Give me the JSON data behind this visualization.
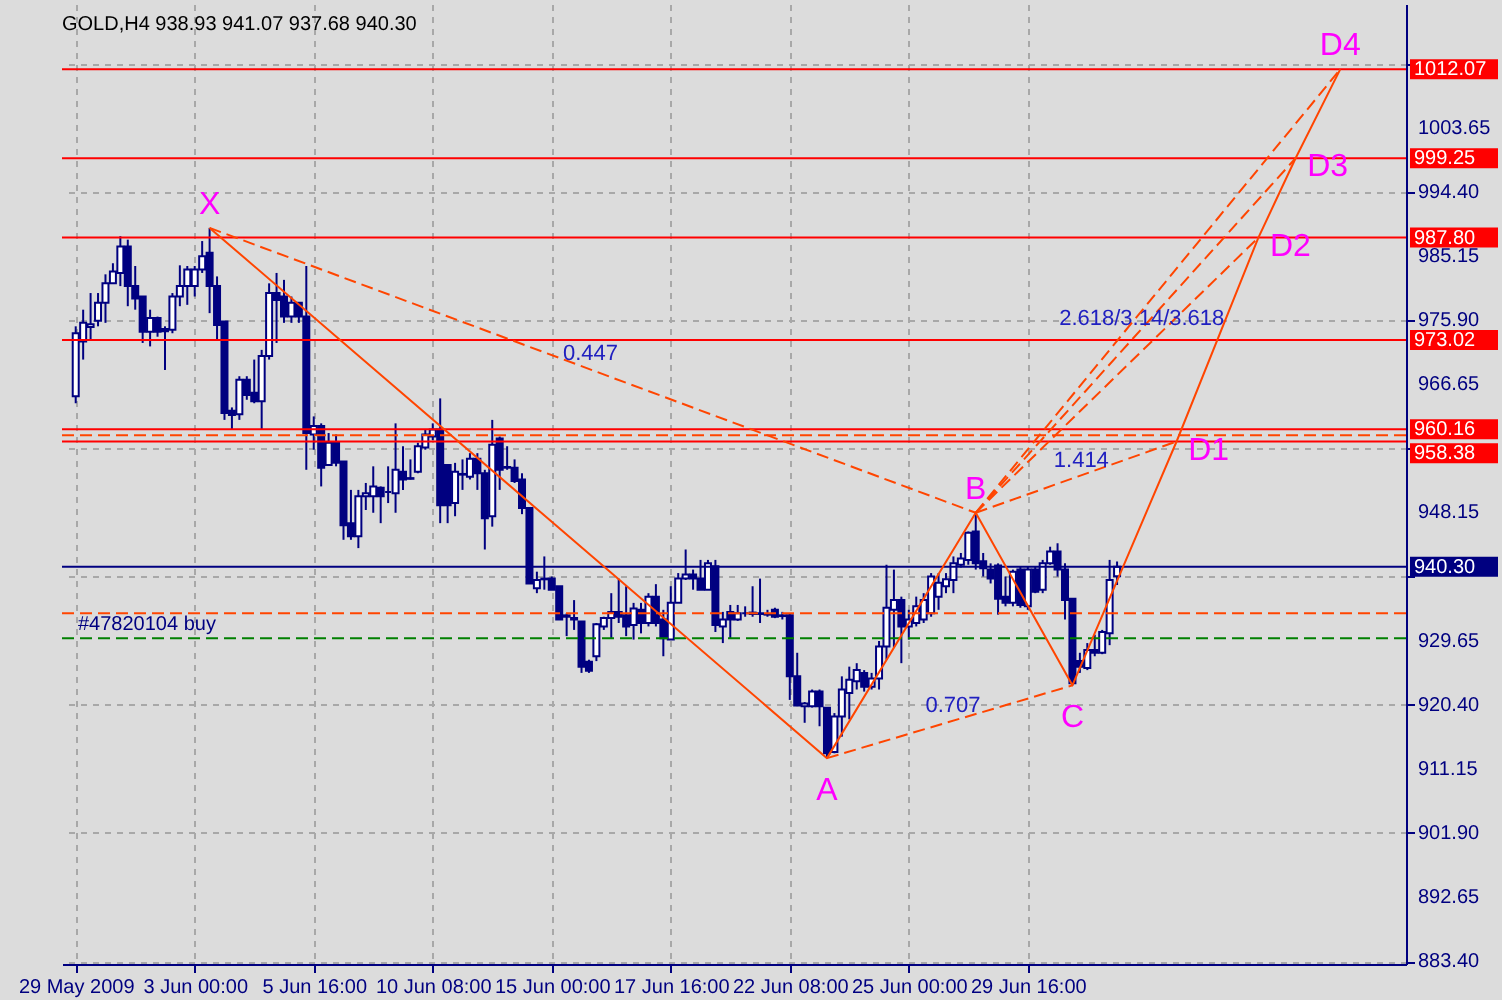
{
  "chart_data": {
    "type": "candlestick",
    "title": "GOLD,H4  938.93 941.07 937.68 940.30",
    "color": "#000080",
    "categories": [
      "29 May 2009",
      null,
      null,
      null,
      null,
      null,
      null,
      null,
      null,
      null,
      null,
      null,
      null,
      null,
      null,
      null,
      "3 Jun 00:00",
      null,
      null,
      null,
      null,
      null,
      null,
      null,
      null,
      null,
      null,
      null,
      null,
      null,
      null,
      null,
      "5 Jun 16:00",
      null,
      null,
      null,
      null,
      null,
      null,
      null,
      null,
      null,
      null,
      null,
      null,
      null,
      null,
      null,
      "10 Jun 08:00",
      null,
      null,
      null,
      null,
      null,
      null,
      null,
      null,
      null,
      null,
      null,
      null,
      null,
      null,
      null,
      "15 Jun 00:00",
      null,
      null,
      null,
      null,
      null,
      null,
      null,
      null,
      null,
      null,
      null,
      null,
      null,
      null,
      null,
      "17 Jun 16:00",
      null,
      null,
      null,
      null,
      null,
      null,
      null,
      null,
      null,
      null,
      null,
      null,
      null,
      null,
      null,
      "22 Jun 08:00",
      null,
      null,
      null,
      null,
      null,
      null,
      null,
      null,
      null,
      null,
      null,
      null,
      null,
      null,
      null,
      "25 Jun 00:00",
      null,
      null,
      null,
      null,
      null,
      null,
      null,
      null,
      null,
      null,
      null,
      null,
      null,
      null,
      null,
      "29 Jun 16:00",
      null,
      null,
      null,
      null,
      null,
      null,
      null,
      null,
      null,
      null,
      null,
      null,
      null,
      null,
      null,
      null,
      null,
      null,
      null,
      null,
      null,
      null,
      null,
      null,
      null,
      null,
      null,
      null,
      null,
      null,
      null,
      null,
      null,
      null,
      null,
      null,
      null,
      null,
      null,
      null,
      null,
      null,
      null,
      null,
      null,
      null,
      null,
      null,
      null
    ],
    "ohlc": [
      [
        964.9,
        975.0,
        963.9,
        974.0
      ],
      [
        972.8,
        977.4,
        970.2,
        975.5
      ],
      [
        974.9,
        979.8,
        973.1,
        975.3
      ],
      [
        975.8,
        979.8,
        975.0,
        978.4
      ],
      [
        978.4,
        982.5,
        975.5,
        981.2
      ],
      [
        981.2,
        984.1,
        981.2,
        982.9
      ],
      [
        982.7,
        988.0,
        980.8,
        986.5
      ],
      [
        986.5,
        987.5,
        977.9,
        980.8
      ],
      [
        980.8,
        983.7,
        977.4,
        979.0
      ],
      [
        979.3,
        979.3,
        972.6,
        974.2
      ],
      [
        974.2,
        977.4,
        972.1,
        976.2
      ],
      [
        976.2,
        976.4,
        973.5,
        974.2
      ],
      [
        974.6,
        975.0,
        968.7,
        974.3
      ],
      [
        974.5,
        979.8,
        974.0,
        979.3
      ],
      [
        979.3,
        983.8,
        977.9,
        980.8
      ],
      [
        980.8,
        983.7,
        978.1,
        983.2
      ],
      [
        980.8,
        983.7,
        979.3,
        983.2
      ],
      [
        983.2,
        987.3,
        982.7,
        985.1
      ],
      [
        985.6,
        989.2,
        976.9,
        980.8
      ],
      [
        980.8,
        982.2,
        972.9,
        975.2
      ],
      [
        975.7,
        975.7,
        961.5,
        962.5
      ],
      [
        962.8,
        963.3,
        960.1,
        962.2
      ],
      [
        962.3,
        967.8,
        961.5,
        967.3
      ],
      [
        967.3,
        967.8,
        964.4,
        965.1
      ],
      [
        965.4,
        970.2,
        963.9,
        964.2
      ],
      [
        964.2,
        971.6,
        960.1,
        970.7
      ],
      [
        970.7,
        981.2,
        970.2,
        979.8
      ],
      [
        979.8,
        982.7,
        972.6,
        978.8
      ],
      [
        979.3,
        981.7,
        975.5,
        976.4
      ],
      [
        976.4,
        979.3,
        975.5,
        978.4
      ],
      [
        978.4,
        978.4,
        975.5,
        976.4
      ],
      [
        976.4,
        983.7,
        954.3,
        959.6
      ],
      [
        959.4,
        962.0,
        957.2,
        960.6
      ],
      [
        960.6,
        961.0,
        951.9,
        954.6
      ],
      [
        955.0,
        959.6,
        955.0,
        958.2
      ],
      [
        958.2,
        959.4,
        954.8,
        955.3
      ],
      [
        955.5,
        955.5,
        944.2,
        946.3
      ],
      [
        946.6,
        951.4,
        944.2,
        944.7
      ],
      [
        944.7,
        951.4,
        943.0,
        950.5
      ],
      [
        950.5,
        952.4,
        948.5,
        950.9
      ],
      [
        950.5,
        954.8,
        948.1,
        951.9
      ],
      [
        951.7,
        951.9,
        946.6,
        950.5
      ],
      [
        951.1,
        954.8,
        949.5,
        951.1
      ],
      [
        950.9,
        961.0,
        948.1,
        954.3
      ],
      [
        954.0,
        957.7,
        951.4,
        952.9
      ],
      [
        953.0,
        955.8,
        952.9,
        953.1
      ],
      [
        954.0,
        958.2,
        953.8,
        957.7
      ],
      [
        957.5,
        960.1,
        957.2,
        959.4
      ],
      [
        959.1,
        961.0,
        958.6,
        960.1
      ],
      [
        960.1,
        964.6,
        946.6,
        949.2
      ],
      [
        955.0,
        955.0,
        946.6,
        949.2
      ],
      [
        949.5,
        955.3,
        947.6,
        954.0
      ],
      [
        953.7,
        955.8,
        951.4,
        953.6
      ],
      [
        953.3,
        956.7,
        952.9,
        955.9
      ],
      [
        955.9,
        956.7,
        951.4,
        953.8
      ],
      [
        953.8,
        954.3,
        942.8,
        947.3
      ],
      [
        947.6,
        961.5,
        946.1,
        957.9
      ],
      [
        958.8,
        959.1,
        951.4,
        954.3
      ],
      [
        954.7,
        957.7,
        954.3,
        954.6
      ],
      [
        954.6,
        955.8,
        952.4,
        952.7
      ],
      [
        952.9,
        953.8,
        947.9,
        948.8
      ],
      [
        948.8,
        948.8,
        937.9,
        937.9
      ],
      [
        937.2,
        939.6,
        936.5,
        938.4
      ],
      [
        938.6,
        941.8,
        937.0,
        938.5
      ],
      [
        938.6,
        938.9,
        937.0,
        937.0
      ],
      [
        937.5,
        937.5,
        932.7,
        932.7
      ],
      [
        933.3,
        933.6,
        930.3,
        933.1
      ],
      [
        932.7,
        935.5,
        931.2,
        932.9
      ],
      [
        932.4,
        932.4,
        925.0,
        925.9
      ],
      [
        926.6,
        926.9,
        925.0,
        925.3
      ],
      [
        927.4,
        932.2,
        926.7,
        932.0
      ],
      [
        931.7,
        933.1,
        931.2,
        932.9
      ],
      [
        932.9,
        936.5,
        930.0,
        933.8
      ],
      [
        933.8,
        938.6,
        932.2,
        933.1
      ],
      [
        933.3,
        937.5,
        930.3,
        931.7
      ],
      [
        931.9,
        935.1,
        929.8,
        934.3
      ],
      [
        934.1,
        935.1,
        930.7,
        932.2
      ],
      [
        932.2,
        936.5,
        931.7,
        936.0
      ],
      [
        936.0,
        937.8,
        931.7,
        932.2
      ],
      [
        932.7,
        934.1,
        927.4,
        930.0
      ],
      [
        929.8,
        937.5,
        929.8,
        935.1
      ],
      [
        935.1,
        939.4,
        935.1,
        938.6
      ],
      [
        938.6,
        942.8,
        938.4,
        939.2
      ],
      [
        939.2,
        939.9,
        937.0,
        938.6
      ],
      [
        938.6,
        941.3,
        937.0,
        937.0
      ],
      [
        937.0,
        941.3,
        937.0,
        940.8
      ],
      [
        940.4,
        941.3,
        930.9,
        931.9
      ],
      [
        931.7,
        933.8,
        929.3,
        932.7
      ],
      [
        933.8,
        934.8,
        930.0,
        932.7
      ],
      [
        932.7,
        934.8,
        932.5,
        933.6
      ],
      [
        933.6,
        934.6,
        933.1,
        933.6
      ],
      [
        933.7,
        937.5,
        933.1,
        933.5
      ],
      [
        933.6,
        938.6,
        932.2,
        933.5
      ],
      [
        933.5,
        934.1,
        933.1,
        933.4
      ],
      [
        934.1,
        934.4,
        932.9,
        933.1
      ],
      [
        933.3,
        933.8,
        932.7,
        933.2
      ],
      [
        933.3,
        933.6,
        921.1,
        924.5
      ],
      [
        924.5,
        927.9,
        920.2,
        920.3
      ],
      [
        920.2,
        920.8,
        917.8,
        920.6
      ],
      [
        920.2,
        922.6,
        920.0,
        922.3
      ],
      [
        922.3,
        922.6,
        917.3,
        920.2
      ],
      [
        919.96,
        920.0,
        912.7,
        913.4
      ],
      [
        913.6,
        919.2,
        913.4,
        918.7
      ],
      [
        918.7,
        924.5,
        915.8,
        922.6
      ],
      [
        922.1,
        925.9,
        918.3,
        924.0
      ],
      [
        923.8,
        926.4,
        922.6,
        925.4
      ],
      [
        925.0,
        925.4,
        922.3,
        923.0
      ],
      [
        923.0,
        925.0,
        922.6,
        924.2
      ],
      [
        924.2,
        929.6,
        922.6,
        928.8
      ],
      [
        928.8,
        940.6,
        926.9,
        934.4
      ],
      [
        934.1,
        939.9,
        928.6,
        935.5
      ],
      [
        935.5,
        936.0,
        926.4,
        931.7
      ],
      [
        931.7,
        934.1,
        929.8,
        932.7
      ],
      [
        932.2,
        936.0,
        931.7,
        934.6
      ],
      [
        932.7,
        936.5,
        932.2,
        935.5
      ],
      [
        933.6,
        939.4,
        933.1,
        938.9
      ],
      [
        936.0,
        939.4,
        934.1,
        938.0
      ],
      [
        937.5,
        939.4,
        936.5,
        938.5
      ],
      [
        938.4,
        941.8,
        936.5,
        940.8
      ],
      [
        940.6,
        942.3,
        940.2,
        941.5
      ],
      [
        941.3,
        945.4,
        940.6,
        945.2
      ],
      [
        945.4,
        948.1,
        939.9,
        940.8
      ],
      [
        941.1,
        942.3,
        938.9,
        940.1
      ],
      [
        939.9,
        940.8,
        937.9,
        938.6
      ],
      [
        940.5,
        940.8,
        933.4,
        935.7
      ],
      [
        936.0,
        938.9,
        934.6,
        935.1
      ],
      [
        935.1,
        939.9,
        934.6,
        939.6
      ],
      [
        939.9,
        940.4,
        934.4,
        934.8
      ],
      [
        934.6,
        940.4,
        934.1,
        939.9
      ],
      [
        939.9,
        940.4,
        936.5,
        936.7
      ],
      [
        937.0,
        941.3,
        936.5,
        940.8
      ],
      [
        940.8,
        943.2,
        940.6,
        942.5
      ],
      [
        942.5,
        943.7,
        938.9,
        939.9
      ],
      [
        939.9,
        940.8,
        932.7,
        935.5
      ],
      [
        935.7,
        935.7,
        923.2,
        923.5
      ],
      [
        926.7,
        927.9,
        925.0,
        925.9
      ],
      [
        925.7,
        929.3,
        925.4,
        928.3
      ],
      [
        928.3,
        930.5,
        927.4,
        927.9
      ],
      [
        927.9,
        931.2,
        927.7,
        930.9
      ],
      [
        930.7,
        941.3,
        929.0,
        938.4
      ],
      [
        938.93,
        941.07,
        937.68,
        940.3
      ],
      null,
      null,
      null,
      null,
      null,
      null,
      null,
      null,
      null,
      null,
      null,
      null,
      null,
      null,
      null,
      null,
      null,
      null,
      null,
      null,
      null,
      null,
      null,
      null,
      null,
      null,
      null,
      null,
      null,
      null,
      null,
      null,
      null,
      null,
      null,
      null,
      null
    ],
    "series": [
      {
        "type": "line",
        "color": "#ff4500",
        "line_style": "solid",
        "values": [
          null,
          null,
          null,
          null,
          null,
          null,
          null,
          null,
          null,
          null,
          null,
          null,
          null,
          null,
          null,
          null,
          null,
          null,
          989.2,
          null,
          null,
          null,
          null,
          null,
          null,
          null,
          null,
          null,
          null,
          null,
          null,
          null,
          null,
          null,
          null,
          null,
          null,
          null,
          null,
          null,
          null,
          null,
          null,
          null,
          null,
          null,
          null,
          null,
          null,
          null,
          null,
          null,
          null,
          null,
          null,
          null,
          null,
          null,
          null,
          null,
          null,
          null,
          null,
          null,
          null,
          null,
          null,
          null,
          null,
          null,
          null,
          null,
          null,
          null,
          null,
          null,
          null,
          null,
          null,
          null,
          null,
          null,
          null,
          null,
          null,
          null,
          null,
          null,
          null,
          null,
          null,
          null,
          null,
          null,
          null,
          null,
          null,
          null,
          null,
          null,
          null,
          912.7,
          null,
          null,
          null,
          null,
          null,
          null,
          null,
          null,
          null,
          null,
          null,
          null,
          null,
          null,
          null,
          null,
          null,
          null,
          null,
          948.1,
          null,
          null,
          null,
          null,
          null,
          null,
          null,
          null,
          null,
          null,
          null,
          null,
          923.2,
          null,
          null,
          null,
          null,
          null,
          null,
          null,
          null,
          null,
          null,
          null,
          null,
          null,
          958.38,
          null,
          null,
          null,
          null,
          null,
          null,
          null,
          null,
          null,
          null,
          987.8,
          null,
          null,
          null,
          null,
          999.25,
          null,
          null,
          null,
          null,
          null,
          1012.07,
          null,
          null,
          null,
          null,
          null,
          null,
          null
        ],
        "value_labels": [
          null,
          null,
          null,
          null,
          null,
          null,
          null,
          null,
          null,
          null,
          null,
          null,
          null,
          null,
          null,
          null,
          null,
          null,
          "X",
          null,
          null,
          null,
          null,
          null,
          null,
          null,
          null,
          null,
          null,
          null,
          null,
          null,
          null,
          null,
          null,
          null,
          null,
          null,
          null,
          null,
          null,
          null,
          null,
          null,
          null,
          null,
          null,
          null,
          null,
          null,
          null,
          null,
          null,
          null,
          null,
          null,
          null,
          null,
          null,
          null,
          null,
          null,
          null,
          null,
          null,
          null,
          null,
          null,
          null,
          null,
          null,
          null,
          null,
          null,
          null,
          null,
          null,
          null,
          null,
          null,
          null,
          null,
          null,
          null,
          null,
          null,
          null,
          null,
          null,
          null,
          null,
          null,
          null,
          null,
          null,
          null,
          null,
          null,
          null,
          null,
          null,
          "A",
          null,
          null,
          null,
          null,
          null,
          null,
          null,
          null,
          null,
          null,
          null,
          null,
          null,
          null,
          null,
          null,
          null,
          null,
          null,
          "B",
          null,
          null,
          null,
          null,
          null,
          null,
          null,
          null,
          null,
          null,
          null,
          null,
          "C",
          null,
          null,
          null,
          null,
          null,
          null,
          null,
          null,
          null,
          null,
          null,
          null,
          null,
          "D1",
          null,
          null,
          null,
          null,
          null,
          null,
          null,
          null,
          null,
          null,
          "D2",
          null,
          null,
          null,
          null,
          "D3",
          null,
          null,
          null,
          null,
          null,
          "D4",
          null,
          null,
          null,
          null,
          null,
          null,
          null
        ]
      },
      {
        "type": "line",
        "name": "0.447",
        "color": "#ff4500",
        "line_style": "dashed",
        "values": [
          null,
          null,
          null,
          null,
          null,
          null,
          null,
          null,
          null,
          null,
          null,
          null,
          null,
          null,
          null,
          null,
          null,
          null,
          989.2,
          null,
          null,
          null,
          null,
          null,
          null,
          null,
          null,
          null,
          null,
          null,
          null,
          null,
          null,
          null,
          null,
          null,
          null,
          null,
          null,
          null,
          null,
          null,
          null,
          null,
          null,
          null,
          null,
          null,
          null,
          null,
          null,
          null,
          null,
          null,
          null,
          null,
          null,
          null,
          null,
          null,
          null,
          null,
          null,
          null,
          null,
          null,
          null,
          null,
          null,
          null,
          null,
          null,
          null,
          null,
          null,
          null,
          null,
          null,
          null,
          null,
          null,
          null,
          null,
          null,
          null,
          null,
          null,
          null,
          null,
          null,
          null,
          null,
          null,
          null,
          null,
          null,
          null,
          null,
          null,
          null,
          null,
          null,
          null,
          null,
          null,
          null,
          null,
          null,
          null,
          null,
          null,
          null,
          null,
          null,
          null,
          null,
          null,
          null,
          null,
          null,
          null,
          948.1,
          null,
          null,
          null,
          null,
          null,
          null,
          null,
          null,
          null,
          null,
          null,
          null,
          null,
          null,
          null,
          null,
          null,
          null,
          null,
          null,
          null,
          null,
          null,
          null,
          null,
          null,
          null,
          null,
          null,
          null,
          null,
          null,
          null,
          null,
          null,
          null,
          null,
          null,
          null,
          null,
          null,
          null,
          null,
          null,
          null,
          null,
          null,
          null,
          null,
          null,
          null,
          null,
          null,
          null,
          null,
          null
        ]
      },
      {
        "type": "line",
        "name": "0.707",
        "color": "#ff4500",
        "line_style": "dashed",
        "values": [
          null,
          null,
          null,
          null,
          null,
          null,
          null,
          null,
          null,
          null,
          null,
          null,
          null,
          null,
          null,
          null,
          null,
          null,
          null,
          null,
          null,
          null,
          null,
          null,
          null,
          null,
          null,
          null,
          null,
          null,
          null,
          null,
          null,
          null,
          null,
          null,
          null,
          null,
          null,
          null,
          null,
          null,
          null,
          null,
          null,
          null,
          null,
          null,
          null,
          null,
          null,
          null,
          null,
          null,
          null,
          null,
          null,
          null,
          null,
          null,
          null,
          null,
          null,
          null,
          null,
          null,
          null,
          null,
          null,
          null,
          null,
          null,
          null,
          null,
          null,
          null,
          null,
          null,
          null,
          null,
          null,
          null,
          null,
          null,
          null,
          null,
          null,
          null,
          null,
          null,
          null,
          null,
          null,
          null,
          null,
          null,
          null,
          null,
          null,
          null,
          null,
          912.7,
          null,
          null,
          null,
          null,
          null,
          null,
          null,
          null,
          null,
          null,
          null,
          null,
          null,
          null,
          null,
          null,
          null,
          null,
          null,
          null,
          null,
          null,
          null,
          null,
          null,
          null,
          null,
          null,
          null,
          null,
          null,
          null,
          923.2,
          null,
          null,
          null,
          null,
          null,
          null,
          null,
          null,
          null,
          null,
          null,
          null,
          null,
          null,
          null,
          null,
          null,
          null,
          null,
          null,
          null,
          null,
          null,
          null,
          null,
          null,
          null,
          null,
          null,
          null,
          null,
          null,
          null,
          null,
          null,
          null,
          null,
          null,
          null,
          null,
          null,
          null,
          null
        ]
      },
      {
        "type": "line",
        "name": "1.414",
        "color": "#ff4500",
        "line_style": "dashed",
        "values": [
          null,
          null,
          null,
          null,
          null,
          null,
          null,
          null,
          null,
          null,
          null,
          null,
          null,
          null,
          null,
          null,
          null,
          null,
          null,
          null,
          null,
          null,
          null,
          null,
          null,
          null,
          null,
          null,
          null,
          null,
          null,
          null,
          null,
          null,
          null,
          null,
          null,
          null,
          null,
          null,
          null,
          null,
          null,
          null,
          null,
          null,
          null,
          null,
          null,
          null,
          null,
          null,
          null,
          null,
          null,
          null,
          null,
          null,
          null,
          null,
          null,
          null,
          null,
          null,
          null,
          null,
          null,
          null,
          null,
          null,
          null,
          null,
          null,
          null,
          null,
          null,
          null,
          null,
          null,
          null,
          null,
          null,
          null,
          null,
          null,
          null,
          null,
          null,
          null,
          null,
          null,
          null,
          null,
          null,
          null,
          null,
          null,
          null,
          null,
          null,
          null,
          null,
          null,
          null,
          null,
          null,
          null,
          null,
          null,
          null,
          null,
          null,
          null,
          null,
          null,
          null,
          null,
          null,
          null,
          null,
          null,
          948.1,
          null,
          null,
          null,
          null,
          null,
          null,
          null,
          null,
          null,
          null,
          null,
          null,
          null,
          null,
          null,
          null,
          null,
          null,
          null,
          null,
          null,
          null,
          null,
          null,
          null,
          null,
          958.38,
          null,
          null,
          null,
          null,
          null,
          null,
          null,
          null,
          null,
          null,
          null,
          null,
          null,
          null,
          null,
          null,
          null,
          null,
          null,
          null,
          null,
          null,
          null,
          null,
          null,
          null,
          null,
          null,
          null
        ]
      },
      {
        "type": "line",
        "color": "#ff4500",
        "line_style": "dashed",
        "values": [
          null,
          null,
          null,
          null,
          null,
          null,
          null,
          null,
          null,
          null,
          null,
          null,
          null,
          null,
          null,
          null,
          null,
          null,
          null,
          null,
          null,
          null,
          null,
          null,
          null,
          null,
          null,
          null,
          null,
          null,
          null,
          null,
          null,
          null,
          null,
          null,
          null,
          null,
          null,
          null,
          null,
          null,
          null,
          null,
          null,
          null,
          null,
          null,
          null,
          null,
          null,
          null,
          null,
          null,
          null,
          null,
          null,
          null,
          null,
          null,
          null,
          null,
          null,
          null,
          null,
          null,
          null,
          null,
          null,
          null,
          null,
          null,
          null,
          null,
          null,
          null,
          null,
          null,
          null,
          null,
          null,
          null,
          null,
          null,
          null,
          null,
          null,
          null,
          null,
          null,
          null,
          null,
          null,
          null,
          null,
          null,
          null,
          null,
          null,
          null,
          null,
          null,
          null,
          null,
          null,
          null,
          null,
          null,
          null,
          null,
          null,
          null,
          null,
          null,
          null,
          null,
          null,
          null,
          null,
          null,
          null,
          948.1,
          null,
          null,
          null,
          null,
          null,
          null,
          null,
          null,
          null,
          null,
          null,
          null,
          null,
          null,
          null,
          null,
          null,
          null,
          null,
          null,
          null,
          null,
          null,
          null,
          null,
          null,
          null,
          null,
          null,
          null,
          null,
          null,
          null,
          null,
          null,
          null,
          null,
          987.8,
          null,
          null,
          null,
          null,
          null,
          null,
          null,
          null,
          null,
          null,
          null,
          null,
          null,
          null,
          null,
          null,
          null,
          null
        ]
      },
      {
        "type": "line",
        "name": "2.618/3.14/3.618",
        "color": "#ff4500",
        "line_style": "dashed",
        "values": [
          null,
          null,
          null,
          null,
          null,
          null,
          null,
          null,
          null,
          null,
          null,
          null,
          null,
          null,
          null,
          null,
          null,
          null,
          null,
          null,
          null,
          null,
          null,
          null,
          null,
          null,
          null,
          null,
          null,
          null,
          null,
          null,
          null,
          null,
          null,
          null,
          null,
          null,
          null,
          null,
          null,
          null,
          null,
          null,
          null,
          null,
          null,
          null,
          null,
          null,
          null,
          null,
          null,
          null,
          null,
          null,
          null,
          null,
          null,
          null,
          null,
          null,
          null,
          null,
          null,
          null,
          null,
          null,
          null,
          null,
          null,
          null,
          null,
          null,
          null,
          null,
          null,
          null,
          null,
          null,
          null,
          null,
          null,
          null,
          null,
          null,
          null,
          null,
          null,
          null,
          null,
          null,
          null,
          null,
          null,
          null,
          null,
          null,
          null,
          null,
          null,
          null,
          null,
          null,
          null,
          null,
          null,
          null,
          null,
          null,
          null,
          null,
          null,
          null,
          null,
          null,
          null,
          null,
          null,
          null,
          null,
          948.1,
          null,
          null,
          null,
          null,
          null,
          null,
          null,
          null,
          null,
          null,
          null,
          null,
          null,
          null,
          null,
          null,
          null,
          null,
          null,
          null,
          null,
          null,
          null,
          null,
          null,
          null,
          null,
          null,
          null,
          null,
          null,
          null,
          null,
          null,
          null,
          null,
          null,
          null,
          null,
          null,
          null,
          null,
          999.25,
          null,
          null,
          null,
          null,
          null,
          null,
          null,
          null,
          null,
          null,
          null,
          null,
          null
        ]
      },
      {
        "type": "line",
        "color": "#ff4500",
        "line_style": "dashed",
        "values": [
          null,
          null,
          null,
          null,
          null,
          null,
          null,
          null,
          null,
          null,
          null,
          null,
          null,
          null,
          null,
          null,
          null,
          null,
          null,
          null,
          null,
          null,
          null,
          null,
          null,
          null,
          null,
          null,
          null,
          null,
          null,
          null,
          null,
          null,
          null,
          null,
          null,
          null,
          null,
          null,
          null,
          null,
          null,
          null,
          null,
          null,
          null,
          null,
          null,
          null,
          null,
          null,
          null,
          null,
          null,
          null,
          null,
          null,
          null,
          null,
          null,
          null,
          null,
          null,
          null,
          null,
          null,
          null,
          null,
          null,
          null,
          null,
          null,
          null,
          null,
          null,
          null,
          null,
          null,
          null,
          null,
          null,
          null,
          null,
          null,
          null,
          null,
          null,
          null,
          null,
          null,
          null,
          null,
          null,
          null,
          null,
          null,
          null,
          null,
          null,
          null,
          null,
          null,
          null,
          null,
          null,
          null,
          null,
          null,
          null,
          null,
          null,
          null,
          null,
          null,
          null,
          null,
          null,
          null,
          null,
          null,
          948.1,
          null,
          null,
          null,
          null,
          null,
          null,
          null,
          null,
          null,
          null,
          null,
          null,
          null,
          null,
          null,
          null,
          null,
          null,
          null,
          null,
          null,
          null,
          null,
          null,
          null,
          null,
          null,
          null,
          null,
          null,
          null,
          null,
          null,
          null,
          null,
          null,
          null,
          null,
          null,
          null,
          null,
          null,
          null,
          null,
          null,
          null,
          null,
          null,
          1012.07,
          null,
          null,
          null,
          null,
          null,
          null,
          null
        ]
      }
    ],
    "ylim": [
      883.0,
      1021.5
    ],
    "yticks": [
      {
        "value": 883.4,
        "label": "883.40"
      },
      {
        "value": 892.65,
        "label": "892.65"
      },
      {
        "value": 901.9,
        "label": "901.90"
      },
      {
        "value": 911.15,
        "label": "911.15"
      },
      {
        "value": 920.4,
        "label": "920.40"
      },
      {
        "value": 929.65,
        "label": "929.65"
      },
      {
        "value": 938.9,
        "label": null
      },
      {
        "value": 948.15,
        "label": "948.15"
      },
      {
        "value": 957.4,
        "label": null
      },
      {
        "value": 966.65,
        "label": "966.65"
      },
      {
        "value": 975.9,
        "label": "975.90"
      },
      {
        "value": 985.15,
        "label": "985.15"
      },
      {
        "value": 994.4,
        "label": "994.40"
      },
      {
        "value": 1003.65,
        "label": "1003.65"
      },
      {
        "value": 1012.9,
        "label": null
      }
    ],
    "ref_lines": [
      {
        "axis": "y",
        "value": 1012.07,
        "label": "1012.07",
        "color": "#ff0000",
        "line_style": "solid"
      },
      {
        "axis": "y",
        "value": 999.25,
        "label": "999.25",
        "color": "#ff0000",
        "line_style": "solid"
      },
      {
        "axis": "y",
        "value": 987.8,
        "label": "987.80",
        "color": "#ff0000",
        "line_style": "solid"
      },
      {
        "axis": "y",
        "value": 973.02,
        "label": "973.02",
        "color": "#ff0000",
        "line_style": "solid"
      },
      {
        "axis": "y",
        "value": 960.16,
        "label": "960.16",
        "color": "#ff0000",
        "line_style": "solid"
      },
      {
        "axis": "y",
        "value": 958.38,
        "label": "958.38",
        "color": "#ff0000",
        "line_style": "solid"
      },
      {
        "axis": "y",
        "value": 959.3,
        "color": "#ff4500",
        "line_style": "dashed"
      },
      {
        "axis": "y",
        "value": 940.3,
        "label": "940.30",
        "color": "#000080",
        "line_style": "solid"
      },
      {
        "axis": "y",
        "value": 933.6,
        "color": "#ff4500",
        "line_style": "dashed"
      },
      {
        "axis": "y",
        "value": 930.0,
        "label": "#47820104 buy",
        "color": "#008000",
        "line_style": "dashed"
      }
    ],
    "grid": true
  }
}
